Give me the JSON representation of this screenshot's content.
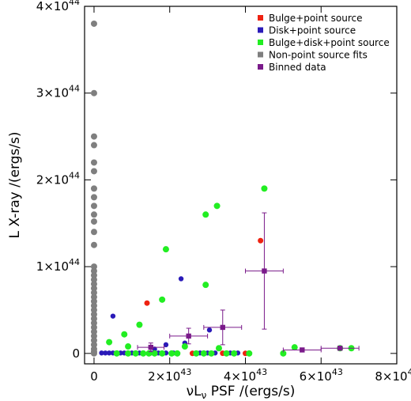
{
  "chart_data": {
    "type": "scatter",
    "xlabel": "νL",
    "xlabel_sub": "ν",
    "xlabel_rest": " PSF /(ergs/s)",
    "ylabel": "L X-ray /(ergs/s)",
    "xlim": [
      -2.5e+42,
      8e+43
    ],
    "ylim": [
      -1.2e+43,
      4e+44
    ],
    "x_ticks": [
      {
        "value": 0,
        "mant": "0",
        "exp": ""
      },
      {
        "value": 2e+43,
        "mant": "2×10",
        "exp": "43"
      },
      {
        "value": 4e+43,
        "mant": "4×10",
        "exp": "43"
      },
      {
        "value": 6e+43,
        "mant": "6×10",
        "exp": "43"
      },
      {
        "value": 8e+43,
        "mant": "8×10",
        "exp": "43"
      }
    ],
    "y_ticks": [
      {
        "value": 0,
        "mant": "0",
        "exp": ""
      },
      {
        "value": 1e+44,
        "mant": "1×10",
        "exp": "44"
      },
      {
        "value": 2e+44,
        "mant": "2×10",
        "exp": "44"
      },
      {
        "value": 3e+44,
        "mant": "3×10",
        "exp": "44"
      },
      {
        "value": 4e+44,
        "mant": "4×10",
        "exp": "44"
      }
    ],
    "legend_position": "top-right",
    "series": [
      {
        "name": "Bulge+point source",
        "color": "#ee2211",
        "marker": "circle",
        "size": 3.5,
        "points": [
          [
            1.4e+43,
            5.8e+43
          ],
          [
            4.4e+43,
            1.3e+44
          ],
          [
            3.4e+43,
            2e+41
          ],
          [
            2.6e+43,
            1e+41
          ],
          [
            4e+43,
            1e+41
          ]
        ]
      },
      {
        "name": "Disk+point source",
        "color": "#2a1ab8",
        "marker": "circle",
        "size": 3.2,
        "points": [
          [
            2.3e+43,
            8.6e+43
          ],
          [
            5e+42,
            4.3e+43
          ],
          [
            3.05e+43,
            2.7e+43
          ],
          [
            1.9e+43,
            1e+43
          ],
          [
            2.4e+43,
            1.2e+43
          ],
          [
            1.6e+43,
            5e+42
          ],
          [
            2e+42,
            5e+41
          ],
          [
            3e+42,
            5e+41
          ],
          [
            4e+42,
            5e+41
          ],
          [
            5e+42,
            5e+41
          ],
          [
            6e+42,
            5e+41
          ],
          [
            7e+42,
            5e+41
          ],
          [
            8e+42,
            5e+41
          ],
          [
            9e+42,
            5e+41
          ],
          [
            1e+43,
            5e+41
          ],
          [
            1.1e+43,
            5e+41
          ],
          [
            1.2e+43,
            5e+41
          ],
          [
            1.3e+43,
            5e+41
          ],
          [
            1.5e+43,
            5e+41
          ],
          [
            1.7e+43,
            5e+41
          ],
          [
            1.9e+43,
            5e+41
          ],
          [
            2.1e+43,
            5e+41
          ],
          [
            2.8e+43,
            5e+41
          ],
          [
            3e+43,
            5e+41
          ],
          [
            3.2e+43,
            5e+41
          ],
          [
            3.6e+43,
            5e+41
          ],
          [
            3.8e+43,
            5e+41
          ]
        ]
      },
      {
        "name": "Bulge+disk+point source",
        "color": "#22ee22",
        "marker": "circle",
        "size": 4,
        "points": [
          [
            4.5e+43,
            1.9e+44
          ],
          [
            3.25e+43,
            1.7e+44
          ],
          [
            2.95e+43,
            1.6e+44
          ],
          [
            1.9e+43,
            1.2e+44
          ],
          [
            2.95e+43,
            7.9e+43
          ],
          [
            1.8e+43,
            6.2e+43
          ],
          [
            1.2e+43,
            3.3e+43
          ],
          [
            8e+42,
            2.2e+43
          ],
          [
            4e+42,
            1.3e+43
          ],
          [
            9e+42,
            8e+42
          ],
          [
            2.4e+43,
            8e+42
          ],
          [
            3.3e+43,
            6e+42
          ],
          [
            5.3e+43,
            7e+42
          ],
          [
            5e+43,
            0
          ],
          [
            6.5e+43,
            6e+42
          ],
          [
            6.8e+43,
            6e+42
          ],
          [
            6e+42,
            0
          ],
          [
            9e+42,
            0
          ],
          [
            1.1e+43,
            0
          ],
          [
            1.3e+43,
            0
          ],
          [
            1.45e+43,
            0
          ],
          [
            1.6e+43,
            0
          ],
          [
            1.8e+43,
            0
          ],
          [
            2.05e+43,
            0
          ],
          [
            2.2e+43,
            0
          ],
          [
            2.7e+43,
            0
          ],
          [
            2.9e+43,
            0
          ],
          [
            3.1e+43,
            0
          ],
          [
            3.5e+43,
            0
          ],
          [
            3.7e+43,
            0
          ],
          [
            4.1e+43,
            0
          ]
        ]
      },
      {
        "name": "Non-point source fits",
        "color": "#7f7f7f",
        "marker": "circle",
        "size": 4,
        "points": [
          [
            0,
            3.8e+44
          ],
          [
            0,
            3e+44
          ],
          [
            0,
            2.5e+44
          ],
          [
            0,
            2.4e+44
          ],
          [
            0,
            2.2e+44
          ],
          [
            0,
            2.1e+44
          ],
          [
            0,
            1.9e+44
          ],
          [
            0,
            1.8e+44
          ],
          [
            0,
            1.7e+44
          ],
          [
            0,
            1.6e+44
          ],
          [
            0,
            1.52e+44
          ],
          [
            0,
            1.4e+44
          ],
          [
            0,
            1.25e+44
          ],
          [
            0,
            1e+44
          ],
          [
            0,
            9.5e+43
          ],
          [
            0,
            9e+43
          ],
          [
            0,
            8.5e+43
          ],
          [
            0,
            8e+43
          ],
          [
            0,
            7.5e+43
          ],
          [
            0,
            7e+43
          ],
          [
            0,
            6.5e+43
          ],
          [
            0,
            6e+43
          ],
          [
            0,
            5.5e+43
          ],
          [
            0,
            5e+43
          ],
          [
            0,
            4.5e+43
          ],
          [
            0,
            4e+43
          ],
          [
            0,
            3.5e+43
          ],
          [
            0,
            3e+43
          ],
          [
            0,
            2.5e+43
          ],
          [
            0,
            2e+43
          ],
          [
            0,
            1.5e+43
          ],
          [
            0,
            1e+43
          ],
          [
            0,
            5e+42
          ],
          [
            0,
            2e+42
          ],
          [
            0,
            0
          ]
        ]
      },
      {
        "name": "Binned data",
        "color": "#7a1a8a",
        "marker": "square",
        "size": 3.2,
        "points": [
          {
            "x": 1.5e+43,
            "y": 7e+42,
            "xerr": 3.5e+42,
            "yerr": 5e+42
          },
          {
            "x": 2.5e+43,
            "y": 2e+43,
            "xerr": 5e+42,
            "yerr": 9e+42
          },
          {
            "x": 3.4e+43,
            "y": 3e+43,
            "xerr": 5e+42,
            "yerr": 2e+43
          },
          {
            "x": 4.5e+43,
            "y": 9.5e+43,
            "xerr": 5e+42,
            "yerr": 6.7e+43
          },
          {
            "x": 5.5e+43,
            "y": 4e+42,
            "xerr": 5e+42,
            "yerr": 1.5e+42
          },
          {
            "x": 6.5e+43,
            "y": 6e+42,
            "xerr": 5e+42,
            "yerr": 1e+42
          }
        ]
      }
    ]
  }
}
